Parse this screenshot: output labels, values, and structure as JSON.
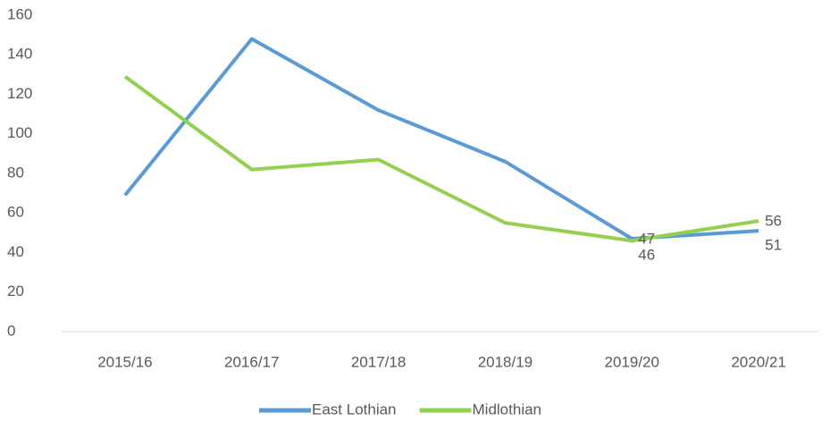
{
  "chart_data": {
    "type": "line",
    "categories": [
      "2015/16",
      "2016/17",
      "2017/18",
      "2018/19",
      "2019/20",
      "2020/21"
    ],
    "series": [
      {
        "name": "East Lothian",
        "color": "#5b9bd5",
        "values": [
          69,
          148,
          112,
          86,
          47,
          51
        ],
        "value_labels": [
          null,
          null,
          null,
          null,
          "47",
          "51"
        ]
      },
      {
        "name": "Midlothian",
        "color": "#92d050",
        "values": [
          129,
          82,
          87,
          55,
          46,
          56
        ],
        "value_labels": [
          null,
          null,
          null,
          null,
          "46",
          "56"
        ]
      }
    ],
    "ylim": [
      0,
      160
    ],
    "yticks": [
      0,
      20,
      40,
      60,
      80,
      100,
      120,
      140,
      160
    ],
    "grid": false,
    "legend": "bottom"
  }
}
